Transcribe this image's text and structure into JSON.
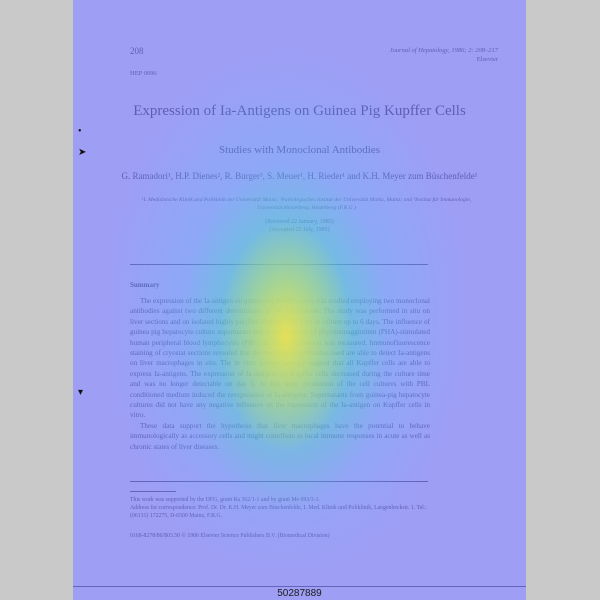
{
  "header": {
    "page_number": "208",
    "journal": "Journal of Hepatology, 1986; 2: 208–217",
    "publisher": "Elsevier",
    "code": "HEP 0096"
  },
  "article": {
    "title": "Expression of Ia-Antigens on Guinea Pig Kupffer Cells",
    "subtitle": "Studies with Monoclonal Antibodies",
    "authors": "G. Ramadori¹, H.P. Dienes², R. Burger³, S. Meuer¹, H. Rieder¹ and K.H. Meyer zum Büschenfelde¹",
    "affiliations": "¹I. Medizinische Klinik und Poliklinik der Universität Mainz; ²Pathologisches Institut der Universität Mainz, Mainz; and ³Institut für Immunologie, Universität Heidelberg, Heidelberg (F.R.G.)",
    "received": "(Received 22 January, 1985)",
    "accepted": "(Accepted 25 July, 1985)"
  },
  "summary": {
    "heading": "Summary",
    "paragraph1": "The expression of the Ia-antigen on guinea pig Kupffer cells was studied employing two monoclonal antibodies against two different determinants of the Ia-molecule. The study was performed in situ on liver sections and on isolated highly purified Kupffer cells kept in culture up to 6 days. The influence of guinea pig hepatocyte culture supernatant and of supernatants of phytohemagglutinin (PHA)-stimulated human peripheral blood lymphocytes (PBL) on the Ia expression was measured. Immunofluorescence staining of cryostat sections revealed that the monoclonal antibodies used are able to detect Ia-antigens on liver macrophages in situ. The in vitro studies strongly suggest that all Kupffer cells are able to express Ia-antigens. The expression of Ia-antigens on Kupffer cells decreased during the culture time and was no longer detectable on day 5. At this time, incubation of the cell cultures with PBL conditioned medium induced the reexpression of Ia-antigens. Supernatants from guinea-pig hepatocyte cultures did not have any negative influence on the expression of the Ia-antigen on Kupffer cells in vitro.",
    "paragraph2": "These data support the hypothesis that liver macrophages have the potential to behave immunologically as accessory cells and might contribute to local immune responses in acute as well as chronic states of liver diseases."
  },
  "footnotes": {
    "support": "This work was supported by the DFG, grant Ra 362/1-1 and by grant Me 693/3-1.",
    "correspondence": "Address for correspondence: Prof. Dr. Dr. K.H. Meyer zum Büschenfelde, I. Med. Klinik und Poliklinik, Langenbeckstr. 1. Tel.: (06131) 172275, D-6500 Mainz, F.R.G.",
    "issn": "0168-8278/86/$03.50 © 1986 Elsevier Science Publishers B.V. (Biomedical Division)"
  },
  "document_id": "50287889",
  "colors": {
    "page_tint": "#7878f5",
    "hotspot": "#ffe146"
  }
}
